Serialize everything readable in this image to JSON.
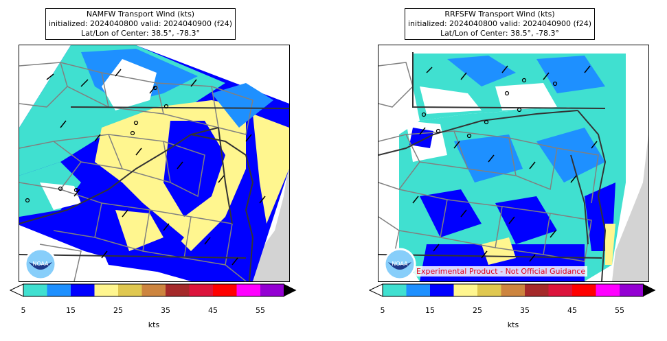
{
  "panels": [
    {
      "title_line1": "NAMFW Transport Wind (kts)",
      "title_line2": "initialized: 2024040800 valid: 2024040900 (f24)",
      "title_line3": "Lat/Lon of Center: 38.5°, -78.3°",
      "logo_text": "NOAA"
    },
    {
      "title_line1": "RRFSFW Transport Wind (kts)",
      "title_line2": "initialized: 2024040800 valid: 2024040900 (f24)",
      "title_line3": "Lat/Lon of Center: 38.5°, -78.3°",
      "logo_text": "NOAA",
      "disclaimer": "Experimental Product - Not Official Guidance"
    }
  ],
  "colorbar": {
    "unit_label": "kts",
    "tick_labels": [
      "5",
      "15",
      "25",
      "35",
      "45",
      "55"
    ],
    "colors": [
      "#40e0d0",
      "#1e90ff",
      "#0000ff",
      "#fff68f",
      "#e0c850",
      "#cd853f",
      "#a52a2a",
      "#dc143c",
      "#ff0000",
      "#ff00ff",
      "#9400d3"
    ],
    "under_color": "#ffffff",
    "over_color": "#000000"
  },
  "map_colors": {
    "ocean": "#d3d3d3",
    "land": "#ffffff",
    "county_lines": "#808080",
    "state_lines": "#333333"
  }
}
